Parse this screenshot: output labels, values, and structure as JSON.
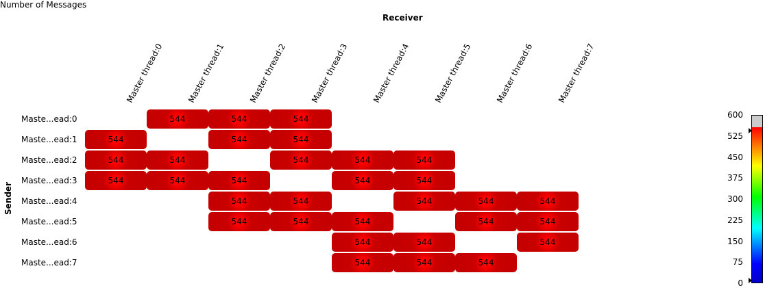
{
  "chart_data": {
    "type": "heatmap",
    "title": "Number of Messages",
    "xlabel": "Receiver",
    "ylabel": "Sender",
    "x_categories": [
      "Master thread:0",
      "Master thread:1",
      "Master thread:2",
      "Master thread:3",
      "Master thread:4",
      "Master thread:5",
      "Master thread:6",
      "Master thread:7"
    ],
    "y_categories": [
      "Maste...ead:0",
      "Maste...ead:1",
      "Maste...ead:2",
      "Maste...ead:3",
      "Maste...ead:4",
      "Maste...ead:5",
      "Maste...ead:6",
      "Maste...ead:7"
    ],
    "cells": [
      {
        "row": 0,
        "col": 1,
        "value": 544
      },
      {
        "row": 0,
        "col": 2,
        "value": 544
      },
      {
        "row": 0,
        "col": 3,
        "value": 544
      },
      {
        "row": 1,
        "col": 0,
        "value": 544
      },
      {
        "row": 1,
        "col": 2,
        "value": 544
      },
      {
        "row": 1,
        "col": 3,
        "value": 544
      },
      {
        "row": 2,
        "col": 0,
        "value": 544
      },
      {
        "row": 2,
        "col": 1,
        "value": 544
      },
      {
        "row": 2,
        "col": 3,
        "value": 544
      },
      {
        "row": 2,
        "col": 4,
        "value": 544
      },
      {
        "row": 2,
        "col": 5,
        "value": 544
      },
      {
        "row": 3,
        "col": 0,
        "value": 544
      },
      {
        "row": 3,
        "col": 1,
        "value": 544
      },
      {
        "row": 3,
        "col": 2,
        "value": 544
      },
      {
        "row": 3,
        "col": 4,
        "value": 544
      },
      {
        "row": 3,
        "col": 5,
        "value": 544
      },
      {
        "row": 4,
        "col": 2,
        "value": 544
      },
      {
        "row": 4,
        "col": 3,
        "value": 544
      },
      {
        "row": 4,
        "col": 5,
        "value": 544
      },
      {
        "row": 4,
        "col": 6,
        "value": 544
      },
      {
        "row": 4,
        "col": 7,
        "value": 544
      },
      {
        "row": 5,
        "col": 2,
        "value": 544
      },
      {
        "row": 5,
        "col": 3,
        "value": 544
      },
      {
        "row": 5,
        "col": 4,
        "value": 544
      },
      {
        "row": 5,
        "col": 6,
        "value": 544
      },
      {
        "row": 5,
        "col": 7,
        "value": 544
      },
      {
        "row": 6,
        "col": 4,
        "value": 544
      },
      {
        "row": 6,
        "col": 5,
        "value": 544
      },
      {
        "row": 6,
        "col": 7,
        "value": 544
      },
      {
        "row": 7,
        "col": 4,
        "value": 544
      },
      {
        "row": 7,
        "col": 5,
        "value": 544
      },
      {
        "row": 7,
        "col": 6,
        "value": 544
      }
    ],
    "colorbar": {
      "range": [
        0,
        600
      ],
      "ticks": [
        0,
        75,
        150,
        225,
        300,
        375,
        450,
        525,
        600
      ],
      "range_marker_values": [
        0,
        544
      ]
    },
    "cell_color": "#c80000",
    "grid": false
  }
}
